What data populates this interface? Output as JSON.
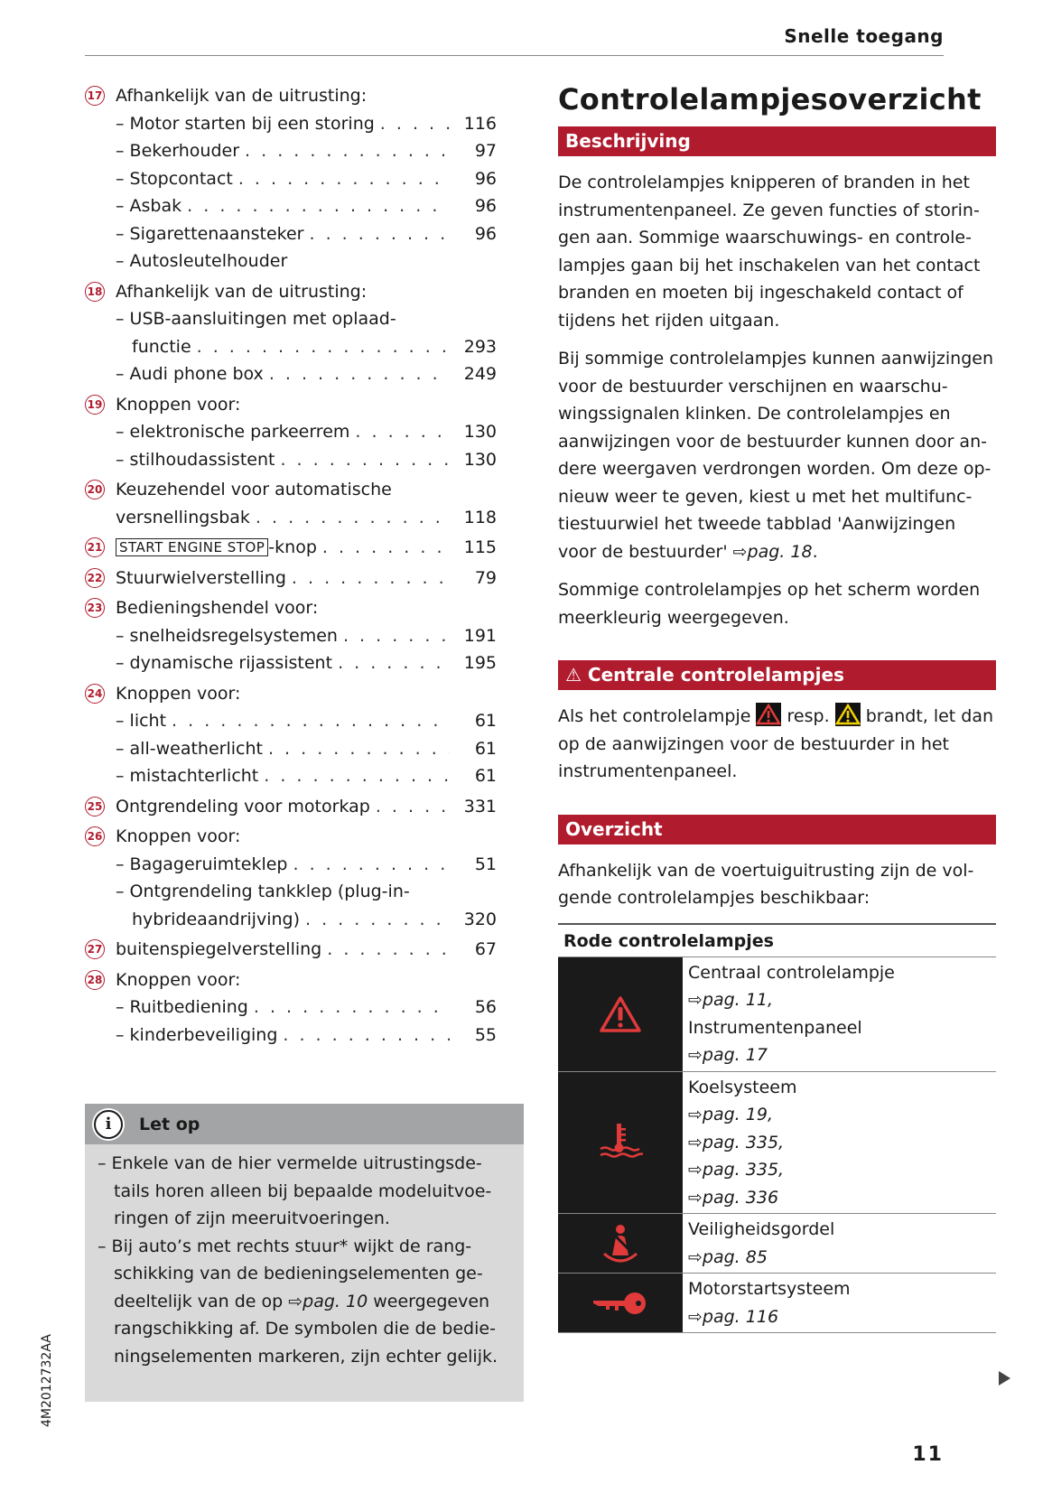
{
  "header": {
    "title": "Snelle toegang"
  },
  "left": {
    "items": [
      {
        "num": "17",
        "label": "Afhankelijk van de uitrusting:",
        "subs": [
          {
            "lines": [
              "– Motor starten bij een storing"
            ],
            "page": "116"
          },
          {
            "lines": [
              "– Bekerhouder"
            ],
            "page": "97"
          },
          {
            "lines": [
              "– Stopcontact"
            ],
            "page": "96"
          },
          {
            "lines": [
              "– Asbak"
            ],
            "page": "96"
          },
          {
            "lines": [
              "– Sigarettenaansteker"
            ],
            "page": "96"
          },
          {
            "lines": [
              "– Autosleutelhouder"
            ],
            "page": ""
          }
        ]
      },
      {
        "num": "18",
        "label": "Afhankelijk van de uitrusting:",
        "subs": [
          {
            "lines": [
              "– USB-aansluitingen met oplaad-",
              "functie"
            ],
            "page": "293"
          },
          {
            "lines": [
              "– Audi phone box"
            ],
            "page": "249"
          }
        ]
      },
      {
        "num": "19",
        "label": "Knoppen voor:",
        "subs": [
          {
            "lines": [
              "– elektronische parkeerrem"
            ],
            "page": "130"
          },
          {
            "lines": [
              "– stilhoudassistent"
            ],
            "page": "130"
          }
        ]
      },
      {
        "num": "20",
        "lines": [
          "Keuzehendel voor automatische",
          "versnellingsbak"
        ],
        "page": "118",
        "subs": []
      },
      {
        "num": "21",
        "boxed": "START ENGINE STOP",
        "label": "-knop",
        "page": "115",
        "subs": []
      },
      {
        "num": "22",
        "label": "Stuurwielverstelling",
        "page": "79",
        "subs": []
      },
      {
        "num": "23",
        "label": "Bedieningshendel voor:",
        "subs": [
          {
            "lines": [
              "– snelheidsregelsystemen"
            ],
            "page": "191"
          },
          {
            "lines": [
              "– dynamische rijassistent"
            ],
            "page": "195"
          }
        ]
      },
      {
        "num": "24",
        "label": "Knoppen voor:",
        "subs": [
          {
            "lines": [
              "– licht"
            ],
            "page": "61"
          },
          {
            "lines": [
              "– all-weatherlicht"
            ],
            "page": "61"
          },
          {
            "lines": [
              "– mistachterlicht"
            ],
            "page": "61"
          }
        ]
      },
      {
        "num": "25",
        "label": "Ontgrendeling voor motorkap",
        "page": "331",
        "subs": []
      },
      {
        "num": "26",
        "label": "Knoppen voor:",
        "subs": [
          {
            "lines": [
              "– Bagageruimteklep"
            ],
            "page": "51"
          },
          {
            "lines": [
              "– Ontgrendeling tankklep (plug-in-",
              "hybrideaandrijving)"
            ],
            "page": "320"
          }
        ]
      },
      {
        "num": "27",
        "label": "buitenspiegelverstelling",
        "page": "67",
        "subs": []
      },
      {
        "num": "28",
        "label": "Knoppen voor:",
        "subs": [
          {
            "lines": [
              "– Ruitbediening"
            ],
            "page": "56"
          },
          {
            "lines": [
              "– kinderbeveiliging"
            ],
            "page": "55"
          }
        ]
      }
    ]
  },
  "note": {
    "title": "Let op",
    "icon": "info-icon",
    "items": [
      {
        "text": "– Enkele van de hier vermelde uitrustingsde­tails horen alleen bij bepaalde modeluitvoe­ringen of zijn meeruitvoeringen."
      },
      {
        "text_a": "– Bij auto’s met rechts stuur* wijkt de rang­schikking van de bedieningselementen ge­deeltelijk van de op ",
        "ref": "pag. 10",
        "text_b": " weergegeven rangschikking af. De symbolen die de bedie­ningselementen markeren, zijn echter ge­lijk."
      }
    ]
  },
  "side_code": "4M2012732AA",
  "right": {
    "title": "Controlelampjeso­verzicht",
    "sections": {
      "beschrijving": "Beschrijving",
      "p1": "De controlelampjes knipperen of branden in het instrumentenpaneel. Ze geven functies of storin­gen aan. Sommige waarschuwings- en controle­lampjes gaan bij het inschakelen van het contact branden en moeten bij ingeschakeld contact of tijdens het rijden uitgaan.",
      "p2": "Bij sommige controlelampjes kunnen aanwijzin­gen voor de bestuurder verschijnen en waarschu­wingssignalen klinken. De controlelampjes en aanwijzingen voor de bestuurder kunnen door an­dere weergaven verdrongen worden. Om deze op­nieuw weer te geven, kiest u met het multifunc­tiestuurwiel het tweede tabblad 'Aanwijzingen voor de bestuurder' ",
      "p2_ref": "pag. 18",
      "p3": "Sommige controlelampjes op het scherm worden meerkleurig weergegeven.",
      "centrale": "Centrale controlelampjes",
      "c1a": "Als het controlelampje ",
      "c1b": " resp. ",
      "c1c": " brandt, let dan op de aanwijzingen voor de bestuurder in het instrumentenpaneel.",
      "overzicht": "Overzicht",
      "o1": "Afhankelijk van de voertuiguitrusting zijn de vol­gende controlelampjes beschikbaar:"
    },
    "table": {
      "header": "Rode controlelampjes",
      "rows": [
        {
          "icon": "warning-triangle-icon",
          "lines": [
            {
              "t": "Centraal controlelampje"
            },
            {
              "r": "pag. 11,"
            },
            {
              "t": "Instrumentenpaneel"
            },
            {
              "r": "pag. 17"
            }
          ]
        },
        {
          "icon": "coolant-temperature-icon",
          "lines": [
            {
              "t": "Koelsysteem"
            },
            {
              "r": "pag. 19,"
            },
            {
              "r": "pag. 335,"
            },
            {
              "r": "pag. 335,"
            },
            {
              "r": "pag. 336"
            }
          ]
        },
        {
          "icon": "seatbelt-icon",
          "lines": [
            {
              "t": "Veiligheidsgordel"
            },
            {
              "r": "pag. 85"
            }
          ]
        },
        {
          "icon": "key-icon",
          "lines": [
            {
              "t": "Motorstartsysteem"
            },
            {
              "r": "pag. 116"
            }
          ]
        }
      ]
    }
  },
  "colors": {
    "accent": "#b01c2e",
    "icon_red": "#e03a3a",
    "warning_yellow": "#f2d200"
  },
  "page_number": "11"
}
